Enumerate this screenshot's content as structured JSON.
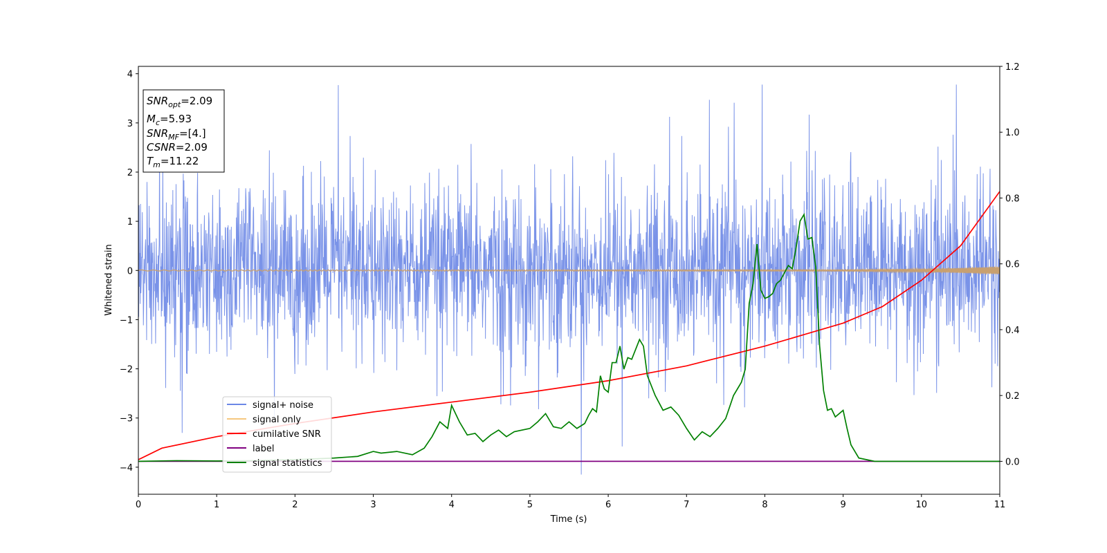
{
  "chart_data": {
    "type": "line",
    "xlabel": "Time (s)",
    "ylabel": "Whitened strain",
    "xlim": [
      0,
      11
    ],
    "ylim_left": [
      -4.55,
      4.15
    ],
    "ylim_right": [
      -0.1,
      1.2
    ],
    "x_ticks": [
      "0",
      "1",
      "2",
      "3",
      "4",
      "5",
      "6",
      "7",
      "8",
      "9",
      "10",
      "11"
    ],
    "y_ticks_left": [
      "−4",
      "−3",
      "−2",
      "−1",
      "0",
      "1",
      "2",
      "3",
      "4"
    ],
    "y_ticks_right": [
      "0.0",
      "0.2",
      "0.4",
      "0.6",
      "0.8",
      "1.0",
      "1.2"
    ],
    "info_box": {
      "lines": [
        {
          "symbol": "SNR",
          "sub": "opt",
          "value": "=2.09"
        },
        {
          "symbol": "M",
          "sub": "c",
          "value": "=5.93"
        },
        {
          "symbol": "SNR",
          "sub": "MF",
          "value": "=[4.]"
        },
        {
          "symbol": "CSNR",
          "sub": "",
          "value": "=2.09"
        },
        {
          "symbol": "T",
          "sub": "m",
          "value": "=11.22"
        }
      ]
    },
    "legend": {
      "placement": "lower-left",
      "entries": [
        {
          "label": "signal+ noise",
          "color": "#6b87e6"
        },
        {
          "label": "signal only",
          "color": "#f5c77e"
        },
        {
          "label": "cumilative SNR",
          "color": "#ff0000"
        },
        {
          "label": "label",
          "color": "#800080"
        },
        {
          "label": "signal statistics",
          "color": "#008000"
        }
      ]
    },
    "series": [
      {
        "name": "signal+ noise",
        "axis": "left",
        "color": "#6b87e6",
        "description_values": {
          "typical_range": [
            -2.0,
            2.0
          ],
          "max": 3.78,
          "min": -4.15
        }
      },
      {
        "name": "signal only",
        "axis": "left",
        "color": "#c8a070",
        "envelope": {
          "x": [
            0,
            9,
            10,
            10.5,
            11
          ],
          "amp": [
            0.01,
            0.015,
            0.03,
            0.05,
            0.08
          ]
        }
      },
      {
        "name": "cumilative SNR",
        "axis": "right",
        "color": "#ff0000",
        "x": [
          0,
          0.3,
          1,
          2,
          3,
          4,
          5,
          6,
          7,
          8,
          8.5,
          9,
          9.5,
          10,
          10.5,
          11
        ],
        "y": [
          0.005,
          0.04,
          0.075,
          0.115,
          0.15,
          0.18,
          0.21,
          0.245,
          0.29,
          0.35,
          0.385,
          0.42,
          0.47,
          0.55,
          0.655,
          0.82
        ]
      },
      {
        "name": "label",
        "axis": "right",
        "color": "#800080",
        "x": [
          0,
          11
        ],
        "y": [
          0,
          0
        ]
      },
      {
        "name": "signal statistics",
        "axis": "right",
        "color": "#008000",
        "x": [
          0,
          0.5,
          1,
          1.5,
          2,
          2.5,
          2.8,
          3.0,
          3.1,
          3.3,
          3.5,
          3.65,
          3.75,
          3.85,
          3.95,
          4.0,
          4.1,
          4.2,
          4.3,
          4.4,
          4.5,
          4.6,
          4.7,
          4.8,
          5.0,
          5.1,
          5.2,
          5.3,
          5.4,
          5.5,
          5.6,
          5.7,
          5.75,
          5.8,
          5.85,
          5.9,
          5.95,
          6.0,
          6.05,
          6.1,
          6.15,
          6.2,
          6.25,
          6.3,
          6.4,
          6.45,
          6.5,
          6.6,
          6.7,
          6.8,
          6.9,
          7.0,
          7.1,
          7.2,
          7.3,
          7.4,
          7.5,
          7.6,
          7.7,
          7.75,
          7.8,
          7.85,
          7.9,
          7.95,
          8.0,
          8.05,
          8.1,
          8.15,
          8.2,
          8.3,
          8.35,
          8.4,
          8.45,
          8.5,
          8.55,
          8.6,
          8.65,
          8.7,
          8.75,
          8.8,
          8.85,
          8.9,
          9.0,
          9.05,
          9.1,
          9.15,
          9.2,
          9.3,
          9.4,
          9.5,
          9.6,
          9.8,
          10,
          11
        ],
        "y": [
          0.0,
          0.002,
          0.001,
          0.002,
          0.005,
          0.01,
          0.015,
          0.03,
          0.025,
          0.03,
          0.02,
          0.04,
          0.075,
          0.12,
          0.1,
          0.17,
          0.12,
          0.08,
          0.085,
          0.06,
          0.08,
          0.095,
          0.075,
          0.09,
          0.1,
          0.12,
          0.145,
          0.105,
          0.1,
          0.12,
          0.1,
          0.115,
          0.14,
          0.16,
          0.15,
          0.26,
          0.22,
          0.21,
          0.3,
          0.3,
          0.35,
          0.28,
          0.315,
          0.31,
          0.37,
          0.35,
          0.26,
          0.2,
          0.155,
          0.165,
          0.14,
          0.1,
          0.065,
          0.09,
          0.075,
          0.1,
          0.13,
          0.2,
          0.24,
          0.28,
          0.48,
          0.54,
          0.66,
          0.52,
          0.495,
          0.5,
          0.51,
          0.54,
          0.55,
          0.595,
          0.585,
          0.65,
          0.73,
          0.75,
          0.675,
          0.68,
          0.59,
          0.35,
          0.215,
          0.155,
          0.16,
          0.135,
          0.155,
          0.1,
          0.05,
          0.03,
          0.01,
          0.005,
          0.0,
          0.0,
          0.0,
          0.0,
          0.0,
          0.0
        ]
      }
    ]
  }
}
